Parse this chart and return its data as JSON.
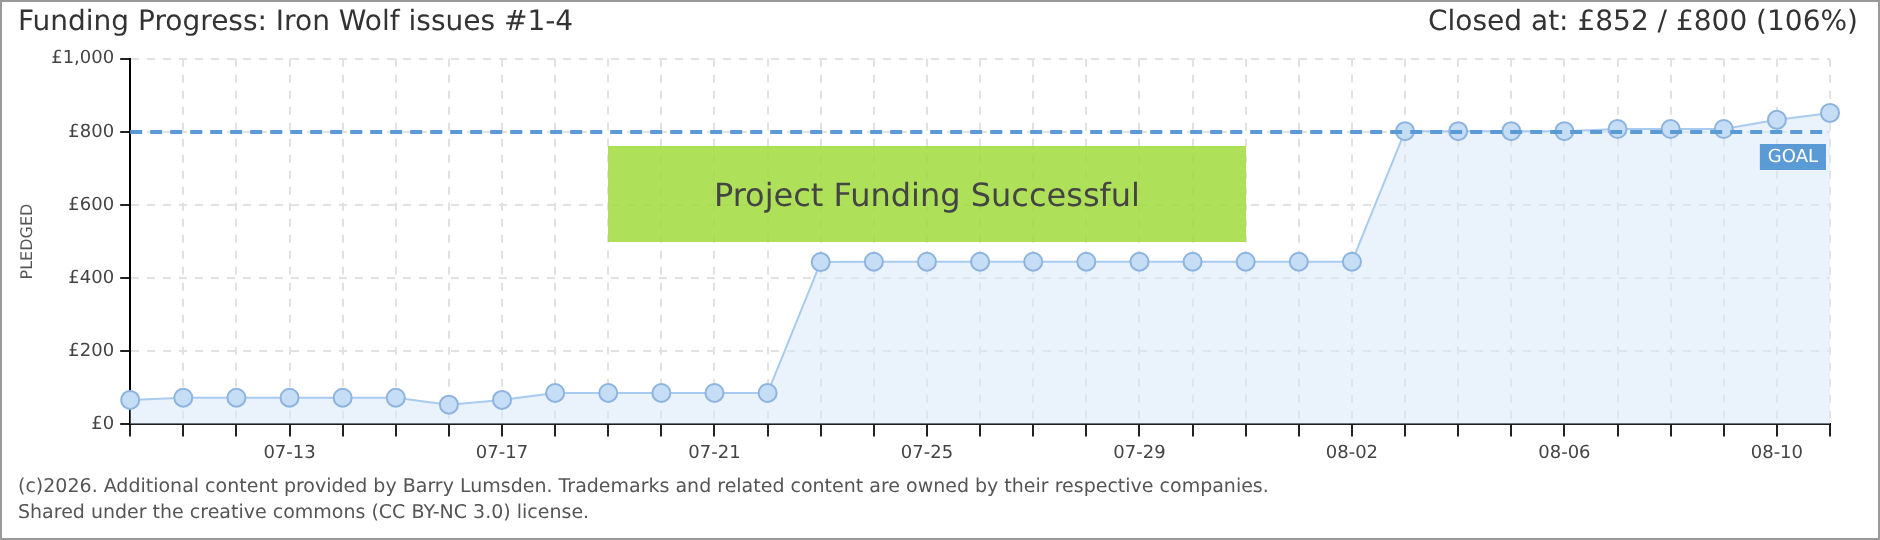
{
  "chart_data": {
    "type": "area",
    "title": "Funding Progress: Iron Wolf issues #1-4",
    "subtitle": "Closed at: £852 / £800 (106%)",
    "ylabel": "PLEDGED",
    "categories": [
      null,
      null,
      null,
      "07-13",
      null,
      null,
      null,
      "07-17",
      null,
      null,
      null,
      "07-21",
      null,
      null,
      null,
      "07-25",
      null,
      null,
      null,
      "07-29",
      null,
      null,
      null,
      "08-02",
      null,
      null,
      null,
      "08-06",
      null,
      null,
      null,
      "08-10",
      null
    ],
    "series": [
      {
        "color": "#a9cbf2",
        "values": [
          67,
          73,
          73,
          73,
          73,
          73,
          54,
          67,
          86,
          86,
          86,
          86,
          86,
          444,
          445,
          445,
          445,
          445,
          445,
          445,
          445,
          445,
          445,
          445,
          802,
          802,
          802,
          802,
          808,
          808,
          808,
          833,
          852
        ]
      }
    ],
    "ylim": [
      0,
      1000
    ],
    "yticks": [
      {
        "value": 0,
        "label": "£0"
      },
      {
        "value": 200,
        "label": "£200"
      },
      {
        "value": 400,
        "label": "£400"
      },
      {
        "value": 600,
        "label": "£600"
      },
      {
        "value": 800,
        "label": "£800"
      },
      {
        "value": 1000,
        "label": "£1,000"
      }
    ],
    "ref_lines": [
      {
        "axis": "y",
        "value": 800,
        "label": "GOAL",
        "color": "#5b9bd5",
        "line_style": "dashed"
      }
    ],
    "annotations": [
      "Project Funding Successful",
      "(c)2026. Additional content provided by Barry Lumsden. Trademarks and related content are owned by their respective companies.",
      "Shared under the creative commons (CC BY-NC 3.0) license."
    ],
    "grid": true,
    "legend": false,
    "marker": "circle",
    "line_style": "solid"
  }
}
